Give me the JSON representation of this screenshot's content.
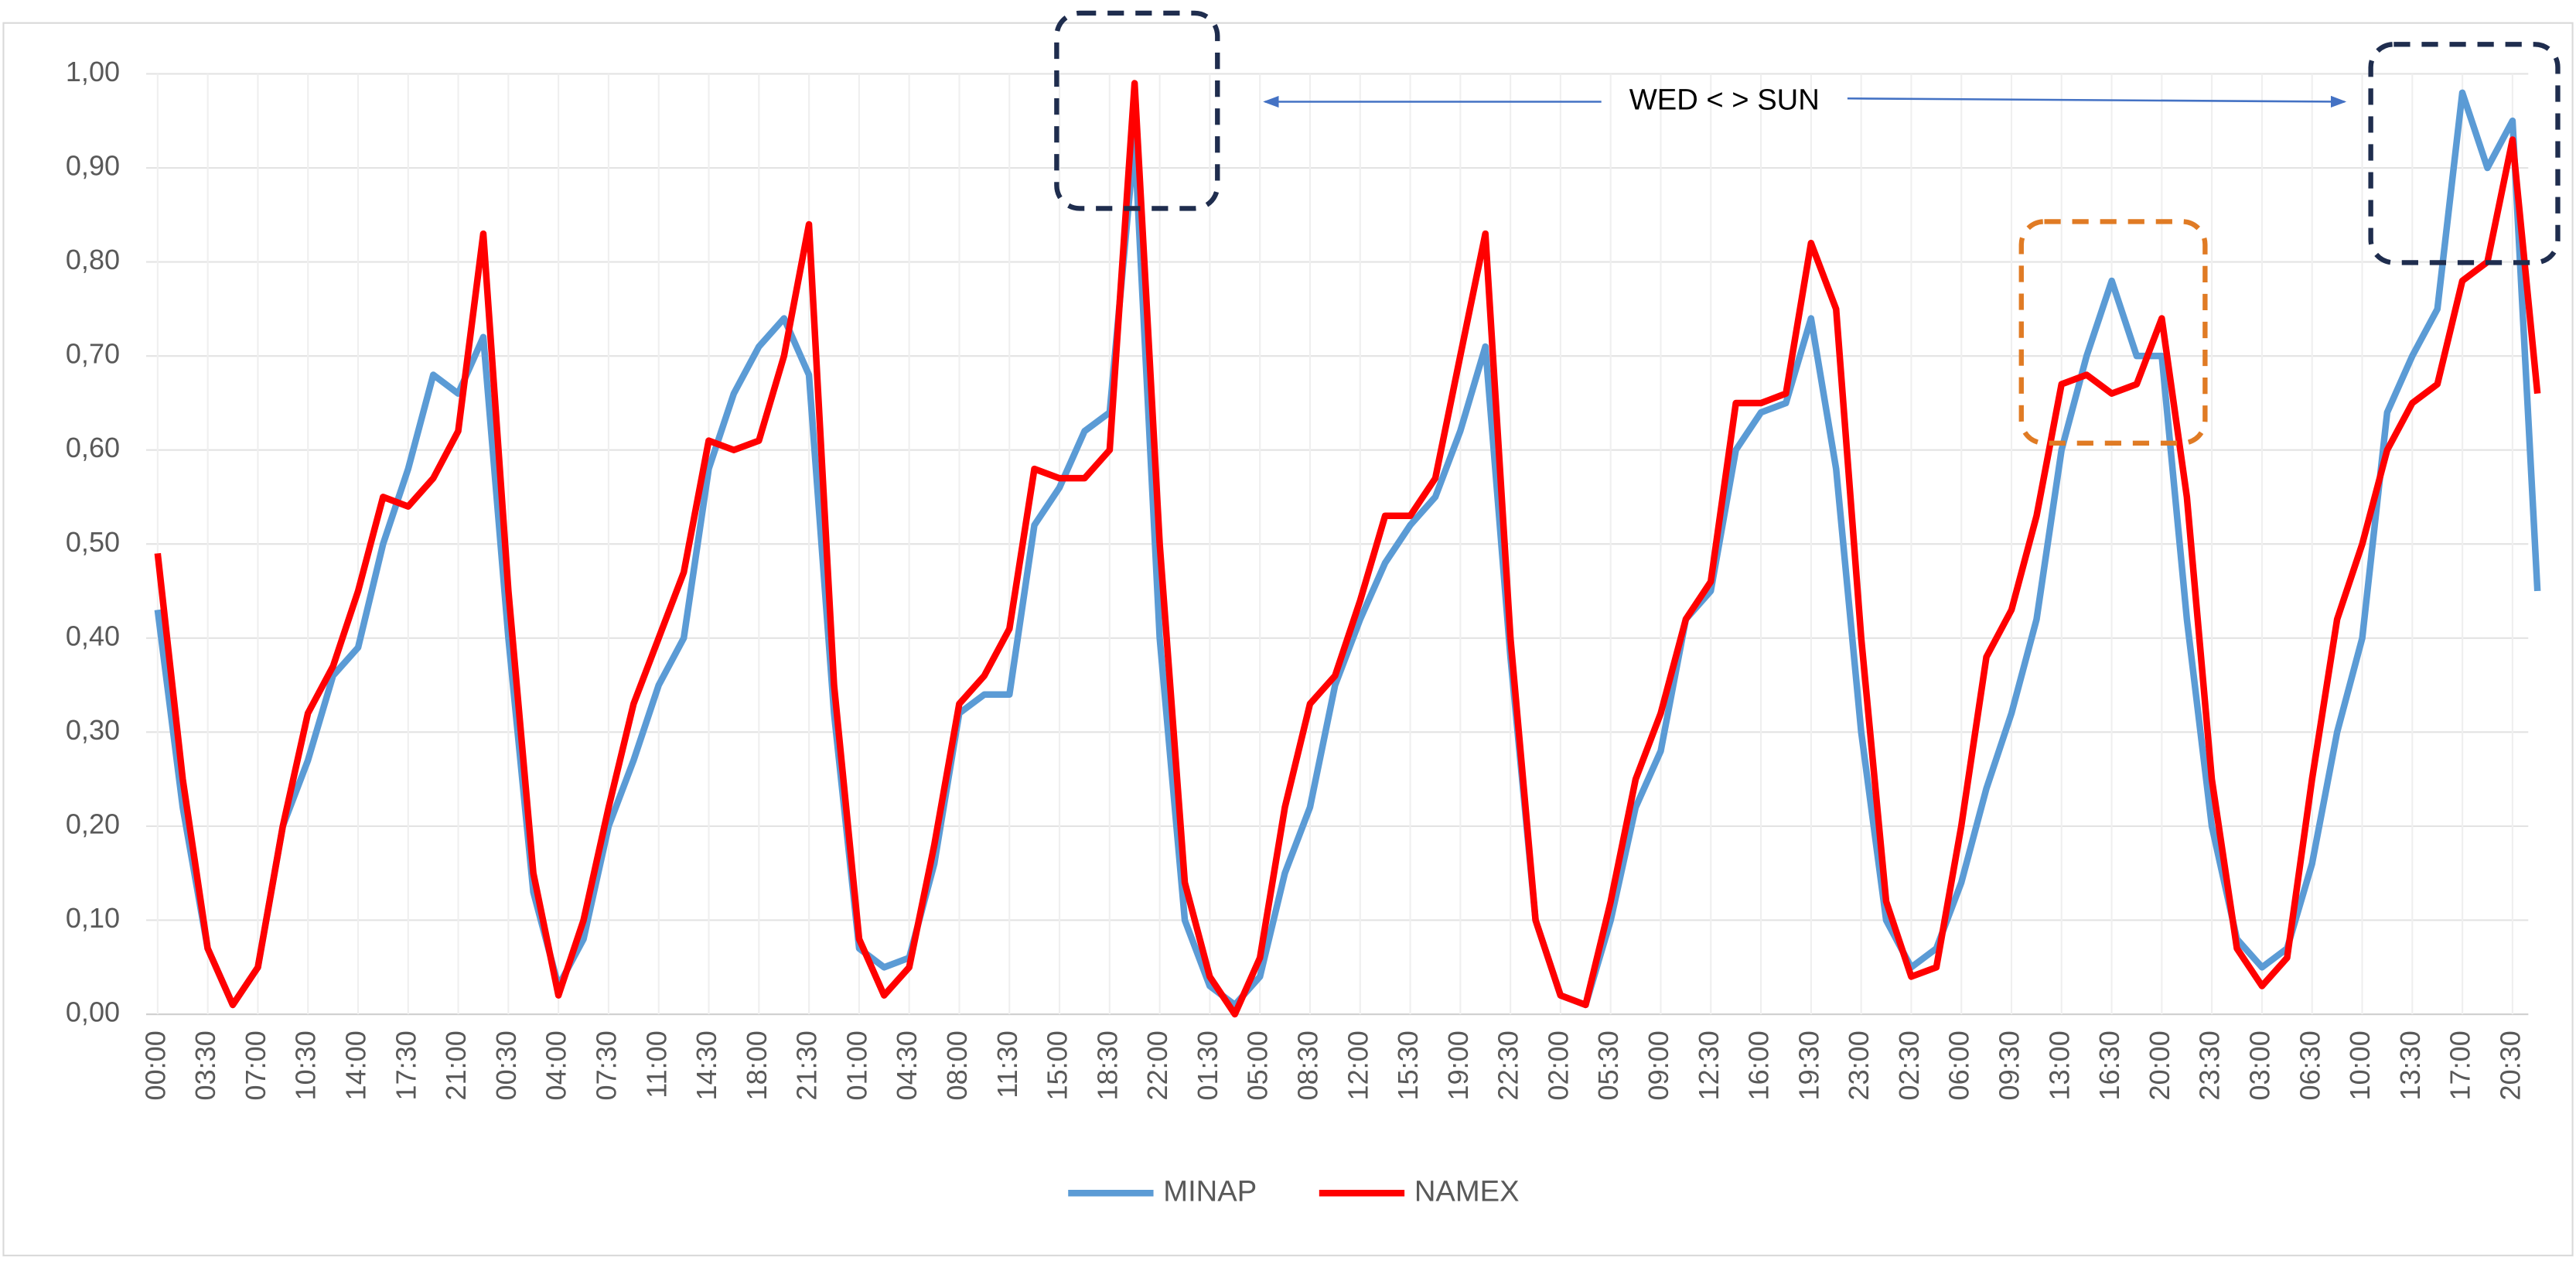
{
  "chart_data": {
    "type": "line",
    "annotation": "WED < > SUN",
    "categories": [
      "00:00",
      null,
      "03:30",
      null,
      "07:00",
      null,
      "10:30",
      null,
      "14:00",
      null,
      "17:30",
      null,
      "21:00",
      null,
      "00:30",
      null,
      "04:00",
      null,
      "07:30",
      null,
      "11:00",
      null,
      "14:30",
      null,
      "18:00",
      null,
      "21:30",
      null,
      "01:00",
      null,
      "04:30",
      null,
      "08:00",
      null,
      "11:30",
      null,
      "15:00",
      null,
      "18:30",
      null,
      "22:00",
      null,
      "01:30",
      null,
      "05:00",
      null,
      "08:30",
      null,
      "12:00",
      null,
      "15:30",
      null,
      "19:00",
      null,
      "22:30",
      null,
      "02:00",
      null,
      "05:30",
      null,
      "09:00",
      null,
      "12:30",
      null,
      "16:00",
      null,
      "19:30",
      null,
      "23:00",
      null,
      "02:30",
      null,
      "06:00",
      null,
      "09:30",
      null,
      "13:00",
      null,
      "16:30",
      null,
      "20:00",
      null,
      "23:30",
      null,
      "03:00",
      null,
      "06:30",
      null,
      "10:00",
      null,
      "13:30",
      null,
      "17:00",
      null,
      "20:30",
      null
    ],
    "series": [
      {
        "name": "MINAP",
        "color": "#5b9bd5",
        "values": [
          0.43,
          0.22,
          0.07,
          0.01,
          0.05,
          0.2,
          0.27,
          0.36,
          0.39,
          0.5,
          0.58,
          0.68,
          0.66,
          0.72,
          0.4,
          0.13,
          0.03,
          0.08,
          0.2,
          0.27,
          0.35,
          0.4,
          0.58,
          0.66,
          0.71,
          0.74,
          0.68,
          0.32,
          0.07,
          0.05,
          0.06,
          0.16,
          0.32,
          0.34,
          0.34,
          0.52,
          0.56,
          0.62,
          0.64,
          0.93,
          0.4,
          0.1,
          0.03,
          0.01,
          0.04,
          0.15,
          0.22,
          0.35,
          0.42,
          0.48,
          0.52,
          0.55,
          0.62,
          0.71,
          0.38,
          0.1,
          0.02,
          0.01,
          0.1,
          0.22,
          0.28,
          0.42,
          0.45,
          0.6,
          0.64,
          0.65,
          0.74,
          0.58,
          0.3,
          0.1,
          0.05,
          0.07,
          0.14,
          0.24,
          0.32,
          0.42,
          0.6,
          0.7,
          0.78,
          0.7,
          0.7,
          0.42,
          0.2,
          0.08,
          0.05,
          0.07,
          0.16,
          0.3,
          0.4,
          0.64,
          0.7,
          0.75,
          0.98,
          0.9,
          0.95,
          0.45
        ]
      },
      {
        "name": "NAMEX",
        "color": "#ff0000",
        "values": [
          0.49,
          0.25,
          0.07,
          0.01,
          0.05,
          0.2,
          0.32,
          0.37,
          0.45,
          0.55,
          0.54,
          0.57,
          0.62,
          0.83,
          0.45,
          0.15,
          0.02,
          0.1,
          0.22,
          0.33,
          0.4,
          0.47,
          0.61,
          0.6,
          0.61,
          0.7,
          0.84,
          0.35,
          0.08,
          0.02,
          0.05,
          0.18,
          0.33,
          0.36,
          0.41,
          0.58,
          0.57,
          0.57,
          0.6,
          0.99,
          0.5,
          0.14,
          0.04,
          0.0,
          0.06,
          0.22,
          0.33,
          0.36,
          0.44,
          0.53,
          0.53,
          0.57,
          0.7,
          0.83,
          0.4,
          0.1,
          0.02,
          0.01,
          0.12,
          0.25,
          0.32,
          0.42,
          0.46,
          0.65,
          0.65,
          0.66,
          0.82,
          0.75,
          0.4,
          0.12,
          0.04,
          0.05,
          0.2,
          0.38,
          0.43,
          0.53,
          0.67,
          0.68,
          0.66,
          0.67,
          0.74,
          0.55,
          0.25,
          0.07,
          0.03,
          0.06,
          0.25,
          0.42,
          0.5,
          0.6,
          0.65,
          0.67,
          0.78,
          0.8,
          0.93,
          0.66
        ]
      }
    ],
    "ylim": [
      0,
      1
    ],
    "yticks": [
      {
        "value": 0,
        "label": "0,00"
      },
      {
        "value": 0.1,
        "label": "0,10"
      },
      {
        "value": 0.2,
        "label": "0,20"
      },
      {
        "value": 0.3,
        "label": "0,30"
      },
      {
        "value": 0.4,
        "label": "0,40"
      },
      {
        "value": 0.5,
        "label": "0,50"
      },
      {
        "value": 0.6,
        "label": "0,60"
      },
      {
        "value": 0.7,
        "label": "0,70"
      },
      {
        "value": 0.8,
        "label": "0,80"
      },
      {
        "value": 0.9,
        "label": "0,90"
      },
      {
        "value": 1,
        "label": "1,00"
      }
    ],
    "grid": true,
    "legend": "bottom"
  }
}
